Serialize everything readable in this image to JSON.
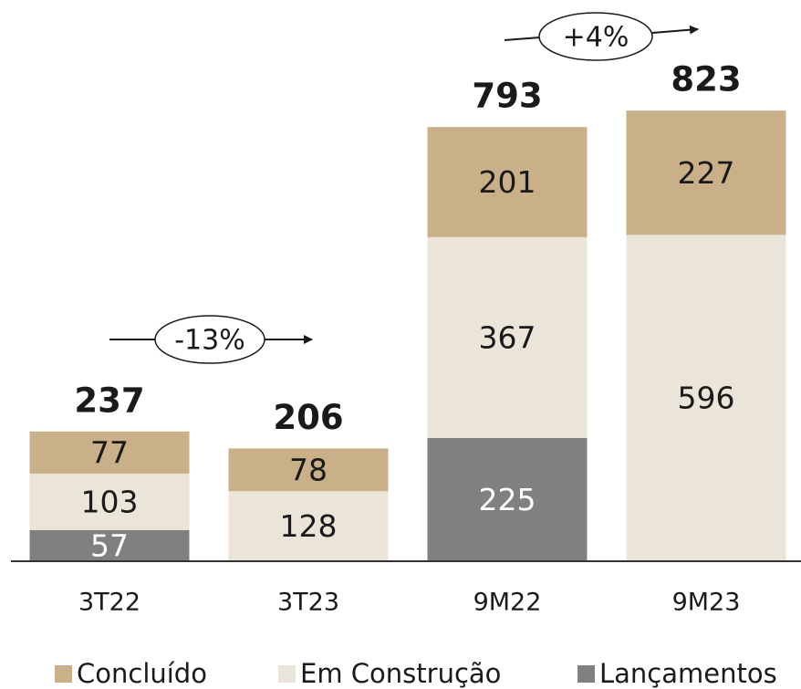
{
  "chart_data": {
    "type": "stacked_bar",
    "categories": [
      "3T22",
      "3T23",
      "9M22",
      "9M23"
    ],
    "series": [
      {
        "name": "Concluído",
        "color": "#c9b088",
        "values": [
          77,
          78,
          201,
          227
        ]
      },
      {
        "name": "Em Construção",
        "color": "#ebe4d8",
        "values": [
          103,
          128,
          367,
          596
        ]
      },
      {
        "name": "Lançamentos",
        "color": "#808080",
        "values": [
          57,
          null,
          225,
          null
        ]
      }
    ],
    "totals": [
      237,
      206,
      793,
      823
    ],
    "annotations": [
      "-13%",
      "+4%"
    ]
  }
}
